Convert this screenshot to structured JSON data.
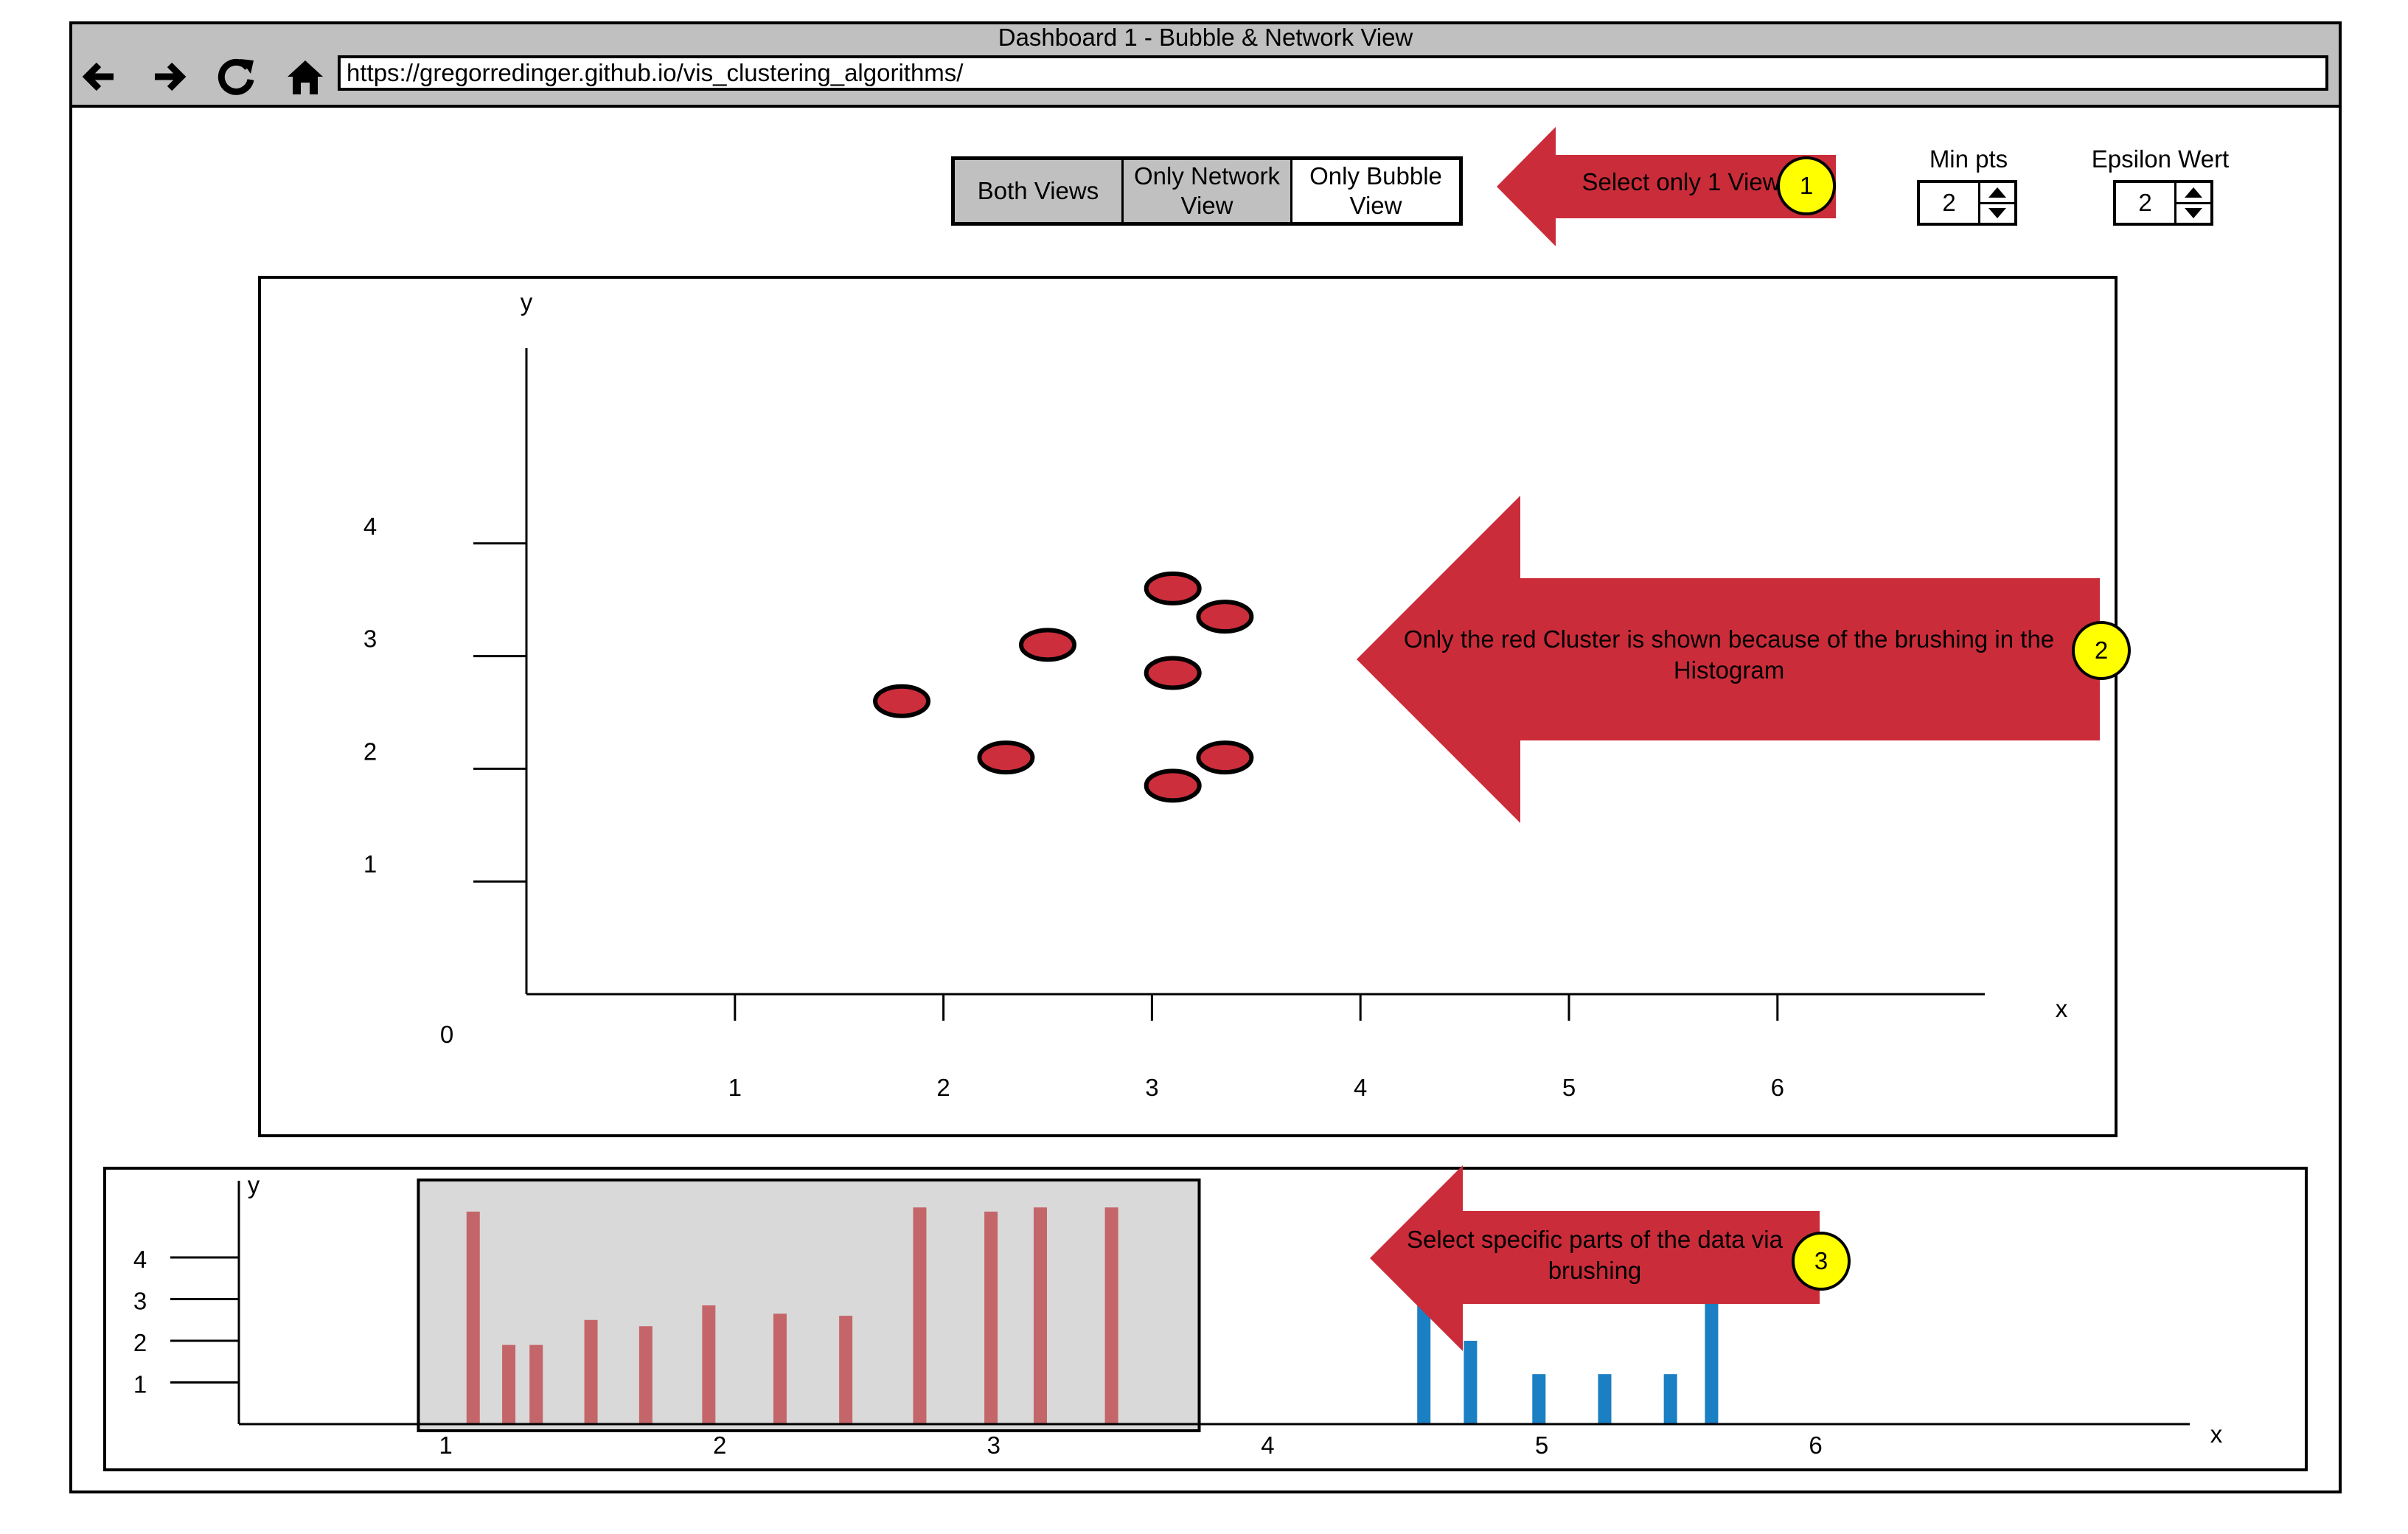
{
  "window": {
    "title": "Dashboard 1 - Bubble & Network View",
    "url": "https://gregorredinger.github.io/vis_clustering_algorithms/",
    "nav_icons": [
      "back-arrow-icon",
      "forward-arrow-icon",
      "refresh-icon",
      "home-icon"
    ]
  },
  "view_toggle": {
    "options": [
      "Both Views",
      "Only Network View",
      "Only Bubble View"
    ],
    "selected": [
      "Both Views",
      "Only Network View"
    ]
  },
  "params": {
    "min_pts": {
      "label": "Min pts",
      "value": "2"
    },
    "epsilon": {
      "label": "Epsilon Wert",
      "value": "2"
    }
  },
  "callouts": [
    {
      "number": "1",
      "text": "Select only 1 View",
      "color": "#cb2c3a"
    },
    {
      "number": "2",
      "text": "Only the red Cluster is shown because of the brushing in the Histogram",
      "color": "#cb2c3a"
    },
    {
      "number": "3",
      "text": "Select specific parts of the data via brushing",
      "color": "#cb2c3a"
    }
  ],
  "colors": {
    "cluster_red": "#cc2e3c",
    "hist_red": "#c46669",
    "hist_blue": "#1b7fc3",
    "brush_fill": "#d9d9d9",
    "badge_yellow": "#ffff00",
    "toolbar_gray": "#c0c0c0"
  },
  "chart_data": [
    {
      "type": "scatter",
      "xlabel": "x",
      "ylabel": "y",
      "origin_label": "0",
      "x_ticks": [
        "1",
        "2",
        "3",
        "4",
        "5",
        "6"
      ],
      "y_ticks": [
        "1",
        "2",
        "3",
        "4"
      ],
      "xlim": [
        0,
        7
      ],
      "ylim": [
        0,
        5
      ],
      "points": [
        {
          "x": 1.8,
          "y": 2.6
        },
        {
          "x": 2.3,
          "y": 2.1
        },
        {
          "x": 2.5,
          "y": 3.1
        },
        {
          "x": 3.1,
          "y": 3.6
        },
        {
          "x": 3.1,
          "y": 2.85
        },
        {
          "x": 3.1,
          "y": 1.85
        },
        {
          "x": 3.35,
          "y": 3.35
        },
        {
          "x": 3.35,
          "y": 2.1
        }
      ]
    },
    {
      "type": "bar",
      "xlabel": "x",
      "ylabel": "y",
      "x_ticks": [
        "1",
        "2",
        "3",
        "4",
        "5",
        "6"
      ],
      "y_ticks": [
        "1",
        "2",
        "3",
        "4"
      ],
      "xlim": [
        0.0,
        7.0
      ],
      "brush_range": [
        0.9,
        3.75
      ],
      "selected_bars": [
        {
          "x": 1.1,
          "value": 5.1
        },
        {
          "x": 1.23,
          "value": 1.9
        },
        {
          "x": 1.33,
          "value": 1.9
        },
        {
          "x": 1.53,
          "value": 2.5
        },
        {
          "x": 1.73,
          "value": 2.35
        },
        {
          "x": 1.96,
          "value": 2.85
        },
        {
          "x": 2.22,
          "value": 2.65
        },
        {
          "x": 2.46,
          "value": 2.6
        },
        {
          "x": 2.73,
          "value": 5.2
        },
        {
          "x": 2.99,
          "value": 5.1
        },
        {
          "x": 3.17,
          "value": 5.2
        },
        {
          "x": 3.43,
          "value": 5.2
        }
      ],
      "other_bars": [
        {
          "x": 4.57,
          "value": 2.9
        },
        {
          "x": 4.74,
          "value": 2.0
        },
        {
          "x": 4.99,
          "value": 1.2
        },
        {
          "x": 5.23,
          "value": 1.2
        },
        {
          "x": 5.47,
          "value": 1.2
        },
        {
          "x": 5.62,
          "value": 3.9
        }
      ]
    }
  ]
}
